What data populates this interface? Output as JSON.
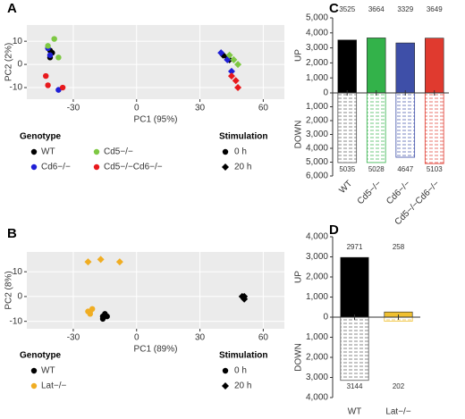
{
  "chart_data": [
    {
      "type": "scatter",
      "panel": "A",
      "xlabel": "PC1 (95%)",
      "ylabel": "PC2 (2%)",
      "xlim": [
        -52,
        70
      ],
      "ylim": [
        -15,
        17
      ],
      "xticks": [
        -30,
        0,
        30,
        60
      ],
      "yticks": [
        -10,
        0,
        10
      ],
      "grid": true,
      "color_legend_title": "Genotype",
      "marker_legend_title": "Stimulation",
      "markers": [
        {
          "name": "0 h",
          "shape": "circle"
        },
        {
          "name": "20 h",
          "shape": "diamond"
        }
      ],
      "series": [
        {
          "name": "WT",
          "color": "#000000",
          "x": [
            -41,
            -40,
            -41,
            41,
            43,
            44
          ],
          "y": [
            6,
            5,
            3,
            4,
            3,
            2
          ],
          "marker": [
            0,
            0,
            0,
            1,
            1,
            1
          ]
        },
        {
          "name": "Cd6−/−",
          "color": "#1f1fd6",
          "x": [
            -42,
            -41,
            -37,
            40,
            43,
            45
          ],
          "y": [
            7,
            4,
            -11,
            5,
            2,
            -3
          ],
          "marker": [
            0,
            0,
            0,
            1,
            1,
            1
          ]
        },
        {
          "name": "Cd5−/−",
          "color": "#7ec843",
          "x": [
            -39,
            -37,
            -42,
            44,
            46,
            48
          ],
          "y": [
            11,
            3,
            8,
            4,
            2,
            0
          ],
          "marker": [
            0,
            0,
            0,
            1,
            1,
            1
          ]
        },
        {
          "name": "Cd5−/−Cd6−/−",
          "color": "#e8191c",
          "x": [
            -43,
            -42,
            -35,
            45,
            47,
            48
          ],
          "y": [
            -5,
            -9,
            -10,
            -5,
            -7,
            -10
          ],
          "marker": [
            0,
            0,
            0,
            1,
            1,
            1
          ]
        }
      ]
    },
    {
      "type": "scatter",
      "panel": "B",
      "xlabel": "PC1 (89%)",
      "ylabel": "PC2 (8%)",
      "xlim": [
        -52,
        70
      ],
      "ylim": [
        -13,
        18
      ],
      "xticks": [
        -30,
        0,
        30,
        60
      ],
      "yticks": [
        -10,
        0,
        10
      ],
      "grid": true,
      "color_legend_title": "Genotype",
      "marker_legend_title": "Stimulation",
      "markers": [
        {
          "name": "0 h",
          "shape": "circle"
        },
        {
          "name": "20 h",
          "shape": "diamond"
        }
      ],
      "series": [
        {
          "name": "WT",
          "color": "#000000",
          "x": [
            -16,
            -15,
            -14,
            -16,
            50,
            51,
            51
          ],
          "y": [
            -8,
            -7,
            -8,
            -9,
            0,
            -1,
            0
          ],
          "marker": [
            0,
            0,
            0,
            0,
            1,
            1,
            1
          ]
        },
        {
          "name": "Lat−/−",
          "color": "#f0ad22",
          "x": [
            -22,
            -21,
            -22,
            -23,
            -23,
            -17,
            -8
          ],
          "y": [
            -6,
            -5,
            -7,
            -6,
            14,
            15,
            14
          ],
          "marker": [
            0,
            0,
            0,
            0,
            1,
            1,
            1
          ]
        }
      ]
    },
    {
      "type": "updown",
      "panel": "C",
      "ylabel": "UP",
      "y2label": "DOWN",
      "categories": [
        "WT",
        "Cd5−/−",
        "Cd6−/−",
        "Cd5−/−Cd6−/−"
      ],
      "xtick_rotation": 45,
      "colors": [
        "#000000",
        "#33b24a",
        "#3e4fa8",
        "#e03a2f"
      ],
      "ylim": [
        0,
        5000
      ],
      "yticks": [
        0,
        {
          "value": 1000,
          "label": "1,000"
        },
        {
          "value": 2000,
          "label": "2,000"
        },
        {
          "value": 3000,
          "label": "3,000"
        },
        {
          "value": 4000,
          "label": "4,000"
        },
        {
          "value": 5000,
          "label": "5,000"
        }
      ],
      "y2lim": [
        0,
        6000
      ],
      "y2ticks": [
        {
          "value": 1000,
          "label": "1,000"
        },
        {
          "value": 2000,
          "label": "2,000"
        },
        {
          "value": 3000,
          "label": "3,000"
        },
        {
          "value": 4000,
          "label": "4,000"
        },
        {
          "value": 5000,
          "label": "5,000"
        },
        {
          "value": 6000,
          "label": "6,000"
        }
      ],
      "series": [
        {
          "name": "UP",
          "values": [
            3525,
            3664,
            3329,
            3649
          ]
        },
        {
          "name": "DOWN",
          "axis": "y2",
          "values": [
            5035,
            5028,
            4647,
            5103
          ]
        }
      ]
    },
    {
      "type": "updown",
      "panel": "D",
      "ylabel": "UP",
      "y2label": "DOWN",
      "categories": [
        "WT",
        "Lat−/−"
      ],
      "xtick_rotation": 0,
      "colors": [
        "#000000",
        "#f0c030"
      ],
      "ylim": [
        0,
        4000
      ],
      "yticks": [
        0,
        {
          "value": 1000,
          "label": "1,000"
        },
        {
          "value": 2000,
          "label": "2,000"
        },
        {
          "value": 3000,
          "label": "3,000"
        },
        {
          "value": 4000,
          "label": "4,000"
        }
      ],
      "y2lim": [
        0,
        4000
      ],
      "y2ticks": [
        {
          "value": 1000,
          "label": "1,000"
        },
        {
          "value": 2000,
          "label": "2,000"
        },
        {
          "value": 3000,
          "label": "3,000"
        },
        {
          "value": 4000,
          "label": "4,000"
        }
      ],
      "series": [
        {
          "name": "UP",
          "values": [
            2971,
            258
          ]
        },
        {
          "name": "DOWN",
          "axis": "y2",
          "values": [
            3144,
            202
          ]
        }
      ]
    }
  ]
}
